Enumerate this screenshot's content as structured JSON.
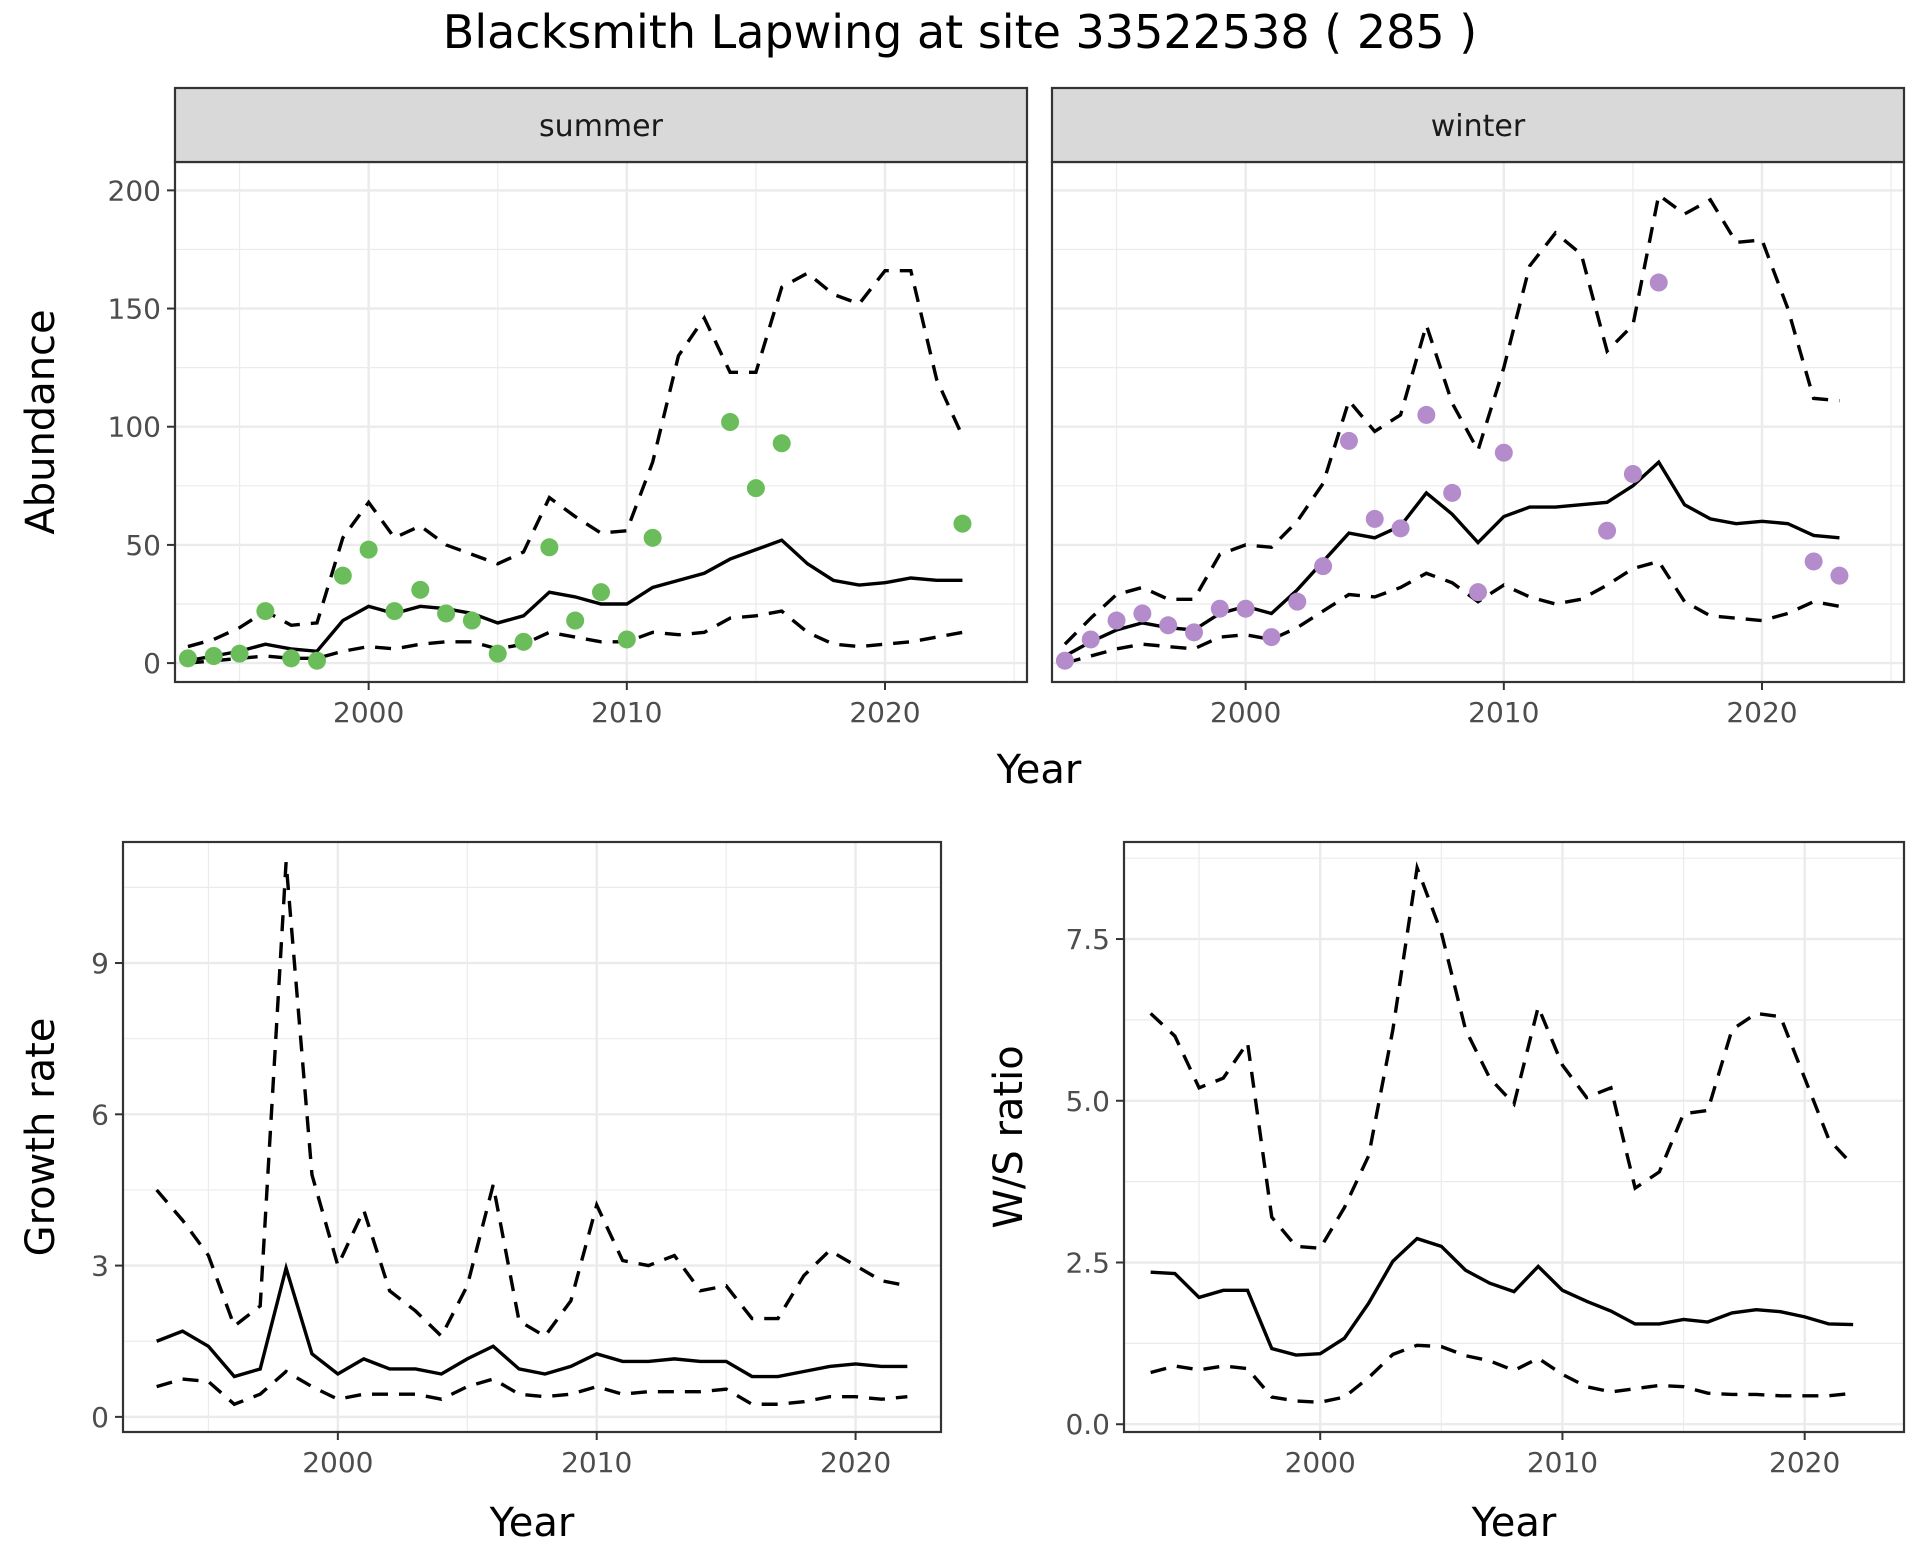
{
  "title": "Blacksmith Lapwing at site 33522538 ( 285 )",
  "colors": {
    "summer_points": "#6ABD5A",
    "winter_points": "#B48CCB",
    "strip_fill": "#D9D9D9"
  },
  "chart_data": [
    {
      "id": "abundance_summer",
      "type": "line",
      "facet": "summer",
      "xlabel": "Year",
      "ylabel": "Abundance",
      "xlim": [
        1992.5,
        2025.5
      ],
      "ylim": [
        -8,
        212
      ],
      "xticks": [
        2000,
        2010,
        2020
      ],
      "yticks": [
        0,
        50,
        100,
        150,
        200
      ],
      "grid": true,
      "series": [
        {
          "role": "estimate",
          "style": "solid",
          "x": [
            1993,
            1994,
            1995,
            1996,
            1997,
            1998,
            1999,
            2000,
            2001,
            2002,
            2003,
            2004,
            2005,
            2006,
            2007,
            2008,
            2009,
            2010,
            2011,
            2012,
            2013,
            2014,
            2015,
            2016,
            2017,
            2018,
            2019,
            2020,
            2021,
            2022,
            2023
          ],
          "y": [
            1,
            3,
            5,
            8,
            6,
            5,
            18,
            24,
            21,
            24,
            23,
            21,
            17,
            20,
            30,
            28,
            25,
            25,
            32,
            35,
            38,
            44,
            48,
            52,
            42,
            35,
            33,
            34,
            36,
            35,
            35
          ]
        },
        {
          "role": "upper",
          "style": "dashed",
          "x": [
            1993,
            1994,
            1995,
            1996,
            1997,
            1998,
            1999,
            2000,
            2001,
            2002,
            2003,
            2004,
            2005,
            2006,
            2007,
            2008,
            2009,
            2010,
            2011,
            2012,
            2013,
            2014,
            2015,
            2016,
            2017,
            2018,
            2019,
            2020,
            2021,
            2022,
            2023
          ],
          "y": [
            7,
            10,
            15,
            22,
            16,
            17,
            53,
            68,
            53,
            58,
            50,
            46,
            42,
            47,
            70,
            62,
            55,
            56,
            85,
            130,
            146,
            123,
            123,
            159,
            165,
            156,
            152,
            166,
            166,
            120,
            96
          ]
        },
        {
          "role": "lower",
          "style": "dashed",
          "x": [
            1993,
            1994,
            1995,
            1996,
            1997,
            1998,
            1999,
            2000,
            2001,
            2002,
            2003,
            2004,
            2005,
            2006,
            2007,
            2008,
            2009,
            2010,
            2011,
            2012,
            2013,
            2014,
            2015,
            2016,
            2017,
            2018,
            2019,
            2020,
            2021,
            2022,
            2023
          ],
          "y": [
            0,
            1,
            2,
            3,
            2,
            2,
            5,
            7,
            6,
            8,
            9,
            9,
            6,
            8,
            13,
            11,
            9,
            9,
            13,
            12,
            13,
            19,
            20,
            22,
            13,
            8,
            7,
            8,
            9,
            11,
            13
          ]
        },
        {
          "role": "observed",
          "style": "points",
          "x": [
            1993,
            1994,
            1995,
            1996,
            1997,
            1998,
            1999,
            2000,
            2001,
            2002,
            2003,
            2004,
            2005,
            2006,
            2007,
            2008,
            2009,
            2010,
            2011,
            2014,
            2015,
            2016,
            2023
          ],
          "y": [
            2,
            3,
            4,
            22,
            2,
            1,
            37,
            48,
            22,
            31,
            21,
            18,
            4,
            9,
            49,
            18,
            30,
            10,
            53,
            102,
            74,
            93,
            59
          ]
        }
      ]
    },
    {
      "id": "abundance_winter",
      "type": "line",
      "facet": "winter",
      "xlabel": "Year",
      "ylabel": "Abundance",
      "xlim": [
        1992.5,
        2025.5
      ],
      "ylim": [
        -8,
        212
      ],
      "xticks": [
        2000,
        2010,
        2020
      ],
      "yticks": [
        0,
        50,
        100,
        150,
        200
      ],
      "grid": true,
      "series": [
        {
          "role": "estimate",
          "style": "solid",
          "x": [
            1993,
            1994,
            1995,
            1996,
            1997,
            1998,
            1999,
            2000,
            2001,
            2002,
            2003,
            2004,
            2005,
            2006,
            2007,
            2008,
            2009,
            2010,
            2011,
            2012,
            2013,
            2014,
            2015,
            2016,
            2017,
            2018,
            2019,
            2020,
            2021,
            2022,
            2023
          ],
          "y": [
            3,
            9,
            14,
            17,
            15,
            14,
            21,
            24,
            21,
            31,
            43,
            55,
            53,
            58,
            72,
            63,
            51,
            62,
            66,
            66,
            67,
            68,
            75,
            85,
            67,
            61,
            59,
            60,
            59,
            54,
            53
          ]
        },
        {
          "role": "upper",
          "style": "dashed",
          "x": [
            1993,
            1994,
            1995,
            1996,
            1997,
            1998,
            1999,
            2000,
            2001,
            2002,
            2003,
            2004,
            2005,
            2006,
            2007,
            2008,
            2009,
            2010,
            2011,
            2012,
            2013,
            2014,
            2015,
            2016,
            2017,
            2018,
            2019,
            2020,
            2021,
            2022,
            2023
          ],
          "y": [
            8,
            19,
            29,
            32,
            27,
            27,
            46,
            50,
            49,
            60,
            76,
            111,
            98,
            105,
            143,
            110,
            90,
            125,
            168,
            182,
            173,
            132,
            143,
            198,
            190,
            196,
            178,
            179,
            150,
            112,
            111
          ]
        },
        {
          "role": "lower",
          "style": "dashed",
          "x": [
            1993,
            1994,
            1995,
            1996,
            1997,
            1998,
            1999,
            2000,
            2001,
            2002,
            2003,
            2004,
            2005,
            2006,
            2007,
            2008,
            2009,
            2010,
            2011,
            2012,
            2013,
            2014,
            2015,
            2016,
            2017,
            2018,
            2019,
            2020,
            2021,
            2022,
            2023
          ],
          "y": [
            0,
            3,
            6,
            8,
            7,
            6,
            11,
            12,
            10,
            15,
            22,
            29,
            28,
            32,
            38,
            34,
            26,
            33,
            28,
            25,
            27,
            33,
            40,
            43,
            26,
            20,
            19,
            18,
            21,
            26,
            24
          ]
        },
        {
          "role": "observed",
          "style": "points",
          "x": [
            1993,
            1994,
            1995,
            1996,
            1997,
            1998,
            1999,
            2000,
            2001,
            2002,
            2003,
            2004,
            2005,
            2006,
            2007,
            2008,
            2009,
            2010,
            2014,
            2015,
            2016,
            2022,
            2023
          ],
          "y": [
            1,
            10,
            18,
            21,
            16,
            13,
            23,
            23,
            11,
            26,
            41,
            94,
            61,
            57,
            105,
            72,
            30,
            89,
            56,
            80,
            161,
            43,
            37
          ]
        }
      ]
    },
    {
      "id": "growth_rate",
      "type": "line",
      "xlabel": "Year",
      "ylabel": "Growth rate",
      "xlim": [
        1991.7,
        2023.3
      ],
      "ylim": [
        -0.3,
        11.4
      ],
      "xticks": [
        2000,
        2010,
        2020
      ],
      "yticks": [
        0,
        3,
        6,
        9
      ],
      "grid": true,
      "series": [
        {
          "role": "estimate",
          "style": "solid",
          "x": [
            1993,
            1994,
            1995,
            1996,
            1997,
            1998,
            1999,
            2000,
            2001,
            2002,
            2003,
            2004,
            2005,
            2006,
            2007,
            2008,
            2009,
            2010,
            2011,
            2012,
            2013,
            2014,
            2015,
            2016,
            2017,
            2018,
            2019,
            2020,
            2021,
            2022
          ],
          "y": [
            1.5,
            1.7,
            1.4,
            0.8,
            0.95,
            2.95,
            1.25,
            0.85,
            1.15,
            0.95,
            0.95,
            0.85,
            1.15,
            1.4,
            0.95,
            0.85,
            1.0,
            1.25,
            1.1,
            1.1,
            1.15,
            1.1,
            1.1,
            0.8,
            0.8,
            0.9,
            1.0,
            1.05,
            1.0,
            1.0
          ]
        },
        {
          "role": "upper",
          "style": "dashed",
          "x": [
            1993,
            1994,
            1995,
            1996,
            1997,
            1998,
            1999,
            2000,
            2001,
            2002,
            2003,
            2004,
            2005,
            2006,
            2007,
            2008,
            2009,
            2010,
            2011,
            2012,
            2013,
            2014,
            2015,
            2016,
            2017,
            2018,
            2019,
            2020,
            2021,
            2022
          ],
          "y": [
            4.5,
            3.9,
            3.2,
            1.8,
            2.2,
            11.0,
            4.8,
            3.0,
            4.1,
            2.5,
            2.1,
            1.6,
            2.6,
            4.6,
            1.9,
            1.6,
            2.3,
            4.2,
            3.1,
            3.0,
            3.2,
            2.5,
            2.6,
            1.95,
            1.95,
            2.8,
            3.3,
            3.0,
            2.7,
            2.6
          ]
        },
        {
          "role": "lower",
          "style": "dashed",
          "x": [
            1993,
            1994,
            1995,
            1996,
            1997,
            1998,
            1999,
            2000,
            2001,
            2002,
            2003,
            2004,
            2005,
            2006,
            2007,
            2008,
            2009,
            2010,
            2011,
            2012,
            2013,
            2014,
            2015,
            2016,
            2017,
            2018,
            2019,
            2020,
            2021,
            2022
          ],
          "y": [
            0.6,
            0.75,
            0.7,
            0.25,
            0.45,
            0.9,
            0.6,
            0.35,
            0.45,
            0.45,
            0.45,
            0.35,
            0.6,
            0.75,
            0.45,
            0.4,
            0.45,
            0.6,
            0.45,
            0.5,
            0.5,
            0.5,
            0.55,
            0.25,
            0.25,
            0.3,
            0.4,
            0.4,
            0.35,
            0.4
          ]
        }
      ]
    },
    {
      "id": "ws_ratio",
      "type": "line",
      "xlabel": "Year",
      "ylabel": "W/S ratio",
      "xlim": [
        1991.9,
        2024.1
      ],
      "ylim": [
        -0.12,
        9.0
      ],
      "xticks": [
        2000,
        2010,
        2020
      ],
      "yticks": [
        0.0,
        2.5,
        5.0,
        7.5
      ],
      "ytick_labels": [
        "0.0",
        "2.5",
        "5.0",
        "7.5"
      ],
      "grid": true,
      "series": [
        {
          "role": "estimate",
          "style": "solid",
          "x": [
            1993,
            1994,
            1995,
            1996,
            1997,
            1998,
            1999,
            2000,
            2001,
            2002,
            2003,
            2004,
            2005,
            2006,
            2007,
            2008,
            2009,
            2010,
            2011,
            2012,
            2013,
            2014,
            2015,
            2016,
            2017,
            2018,
            2019,
            2020,
            2021,
            2022
          ],
          "y": [
            2.35,
            2.33,
            1.96,
            2.07,
            2.07,
            1.17,
            1.07,
            1.09,
            1.33,
            1.87,
            2.52,
            2.87,
            2.75,
            2.38,
            2.18,
            2.05,
            2.44,
            2.07,
            1.9,
            1.75,
            1.55,
            1.55,
            1.62,
            1.58,
            1.72,
            1.77,
            1.74,
            1.66,
            1.55,
            1.54
          ]
        },
        {
          "role": "upper",
          "style": "dashed",
          "x": [
            1993,
            1994,
            1995,
            1996,
            1997,
            1998,
            1999,
            2000,
            2001,
            2002,
            2003,
            2004,
            2005,
            2006,
            2007,
            2008,
            2009,
            2010,
            2011,
            2012,
            2013,
            2014,
            2015,
            2016,
            2017,
            2018,
            2019,
            2020,
            2021,
            2022
          ],
          "y": [
            6.35,
            6.0,
            5.2,
            5.35,
            5.9,
            3.2,
            2.75,
            2.72,
            3.35,
            4.15,
            6.1,
            8.6,
            7.6,
            6.1,
            5.35,
            4.95,
            6.45,
            5.55,
            5.05,
            5.2,
            3.65,
            3.9,
            4.8,
            4.85,
            6.1,
            6.35,
            6.3,
            5.35,
            4.4,
            4.0
          ]
        },
        {
          "role": "lower",
          "style": "dashed",
          "x": [
            1993,
            1994,
            1995,
            1996,
            1997,
            1998,
            1999,
            2000,
            2001,
            2002,
            2003,
            2004,
            2005,
            2006,
            2007,
            2008,
            2009,
            2010,
            2011,
            2012,
            2013,
            2014,
            2015,
            2016,
            2017,
            2018,
            2019,
            2020,
            2021,
            2022
          ],
          "y": [
            0.8,
            0.9,
            0.84,
            0.9,
            0.86,
            0.42,
            0.36,
            0.34,
            0.42,
            0.72,
            1.08,
            1.22,
            1.2,
            1.06,
            0.98,
            0.83,
            1.02,
            0.77,
            0.58,
            0.5,
            0.55,
            0.6,
            0.58,
            0.48,
            0.46,
            0.46,
            0.44,
            0.44,
            0.44,
            0.48
          ]
        }
      ]
    }
  ]
}
